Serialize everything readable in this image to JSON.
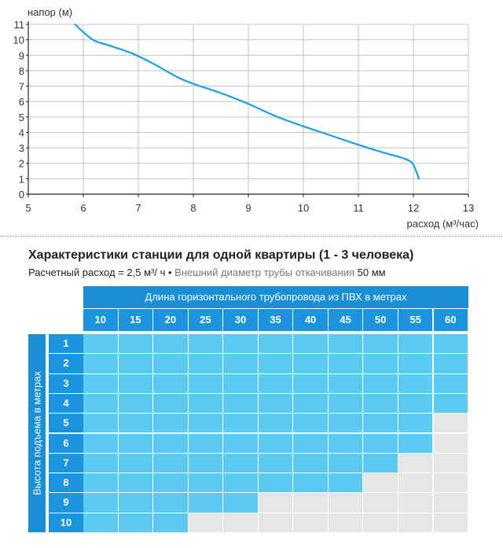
{
  "chart_data": {
    "type": "line",
    "title": "",
    "xlabel": "расход (м³/час)",
    "ylabel": "напор (м)",
    "xlim": [
      5,
      13
    ],
    "ylim": [
      0,
      11
    ],
    "x_ticks": [
      "5",
      "6",
      "7",
      "8",
      "9",
      "10",
      "11",
      "12",
      "13"
    ],
    "y_ticks": [
      "0",
      "1",
      "2",
      "3",
      "4",
      "5",
      "6",
      "7",
      "8",
      "9",
      "10",
      "11"
    ],
    "grid": true,
    "series": [
      {
        "color": "#1aa0e0",
        "x": [
          5.85,
          6.0,
          6.2,
          6.5,
          6.9,
          7.3,
          7.7,
          8.0,
          8.5,
          9.0,
          9.5,
          10.0,
          10.5,
          11.0,
          11.5,
          11.8,
          11.97,
          12.05,
          12.1
        ],
        "y": [
          11.0,
          10.5,
          9.95,
          9.6,
          9.1,
          8.4,
          7.6,
          7.15,
          6.55,
          5.85,
          5.05,
          4.4,
          3.8,
          3.2,
          2.65,
          2.35,
          2.05,
          1.5,
          1.0
        ]
      }
    ]
  },
  "table": {
    "title": "Характеристики станции для одной квартиры (1 - 3 человека)",
    "subtitle_calc": "Расчетный расход = 2,5 м³/ ч",
    "bullet": "•",
    "subtitle_diam_label": "Внешний диаметр трубы откачивания",
    "subtitle_diam_value": "50 мм",
    "header_title": "Длина горизонтального трубопровода из ПВХ в метрах",
    "vertical_label": "Высота подъема в метрах",
    "columns": [
      "10",
      "15",
      "20",
      "25",
      "30",
      "35",
      "40",
      "45",
      "50",
      "55",
      "60"
    ],
    "rows": [
      "1",
      "2",
      "3",
      "4",
      "5",
      "6",
      "7",
      "8",
      "9",
      "10"
    ],
    "allowed_count_per_row": [
      11,
      11,
      11,
      11,
      10,
      10,
      9,
      8,
      5,
      3
    ],
    "colors": {
      "allowed": "#5ccaf2",
      "not_allowed": "#e6e6e6",
      "header": "#1b94dd"
    }
  }
}
